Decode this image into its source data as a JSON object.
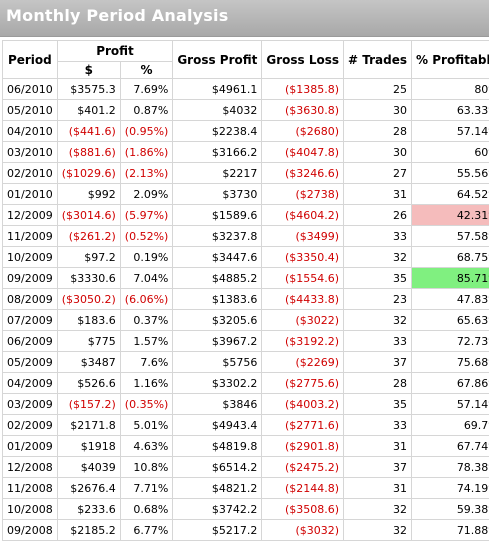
{
  "title": "Monthly Period Analysis",
  "colors": {
    "positive_highlight": "#80f080",
    "negative_highlight": "#f5bcbc",
    "negative_text": "#d00000"
  },
  "columns": {
    "period": "Period",
    "profit": "Profit",
    "profit_dollar": "$",
    "profit_percent": "%",
    "gross_profit": "Gross Profit",
    "gross_loss": "Gross Loss",
    "trades": "# Trades",
    "pct_profitable": "% Profitable"
  },
  "rows": [
    {
      "period": "06/2010",
      "profit_dollar": "$3575.3",
      "profit_percent": "7.69%",
      "gross_profit": "$4961.1",
      "gross_loss": "($1385.8)",
      "trades": "25",
      "pct_profitable": "80%",
      "neg": false,
      "highlight": ""
    },
    {
      "period": "05/2010",
      "profit_dollar": "$401.2",
      "profit_percent": "0.87%",
      "gross_profit": "$4032",
      "gross_loss": "($3630.8)",
      "trades": "30",
      "pct_profitable": "63.33%",
      "neg": false,
      "highlight": ""
    },
    {
      "period": "04/2010",
      "profit_dollar": "($441.6)",
      "profit_percent": "(0.95%)",
      "gross_profit": "$2238.4",
      "gross_loss": "($2680)",
      "trades": "28",
      "pct_profitable": "57.14%",
      "neg": true,
      "highlight": ""
    },
    {
      "period": "03/2010",
      "profit_dollar": "($881.6)",
      "profit_percent": "(1.86%)",
      "gross_profit": "$3166.2",
      "gross_loss": "($4047.8)",
      "trades": "30",
      "pct_profitable": "60%",
      "neg": true,
      "highlight": ""
    },
    {
      "period": "02/2010",
      "profit_dollar": "($1029.6)",
      "profit_percent": "(2.13%)",
      "gross_profit": "$2217",
      "gross_loss": "($3246.6)",
      "trades": "27",
      "pct_profitable": "55.56%",
      "neg": true,
      "highlight": ""
    },
    {
      "period": "01/2010",
      "profit_dollar": "$992",
      "profit_percent": "2.09%",
      "gross_profit": "$3730",
      "gross_loss": "($2738)",
      "trades": "31",
      "pct_profitable": "64.52%",
      "neg": false,
      "highlight": ""
    },
    {
      "period": "12/2009",
      "profit_dollar": "($3014.6)",
      "profit_percent": "(5.97%)",
      "gross_profit": "$1589.6",
      "gross_loss": "($4604.2)",
      "trades": "26",
      "pct_profitable": "42.31%",
      "neg": true,
      "highlight": "worst"
    },
    {
      "period": "11/2009",
      "profit_dollar": "($261.2)",
      "profit_percent": "(0.52%)",
      "gross_profit": "$3237.8",
      "gross_loss": "($3499)",
      "trades": "33",
      "pct_profitable": "57.58%",
      "neg": true,
      "highlight": ""
    },
    {
      "period": "10/2009",
      "profit_dollar": "$97.2",
      "profit_percent": "0.19%",
      "gross_profit": "$3447.6",
      "gross_loss": "($3350.4)",
      "trades": "32",
      "pct_profitable": "68.75%",
      "neg": false,
      "highlight": ""
    },
    {
      "period": "09/2009",
      "profit_dollar": "$3330.6",
      "profit_percent": "7.04%",
      "gross_profit": "$4885.2",
      "gross_loss": "($1554.6)",
      "trades": "35",
      "pct_profitable": "85.71%",
      "neg": false,
      "highlight": "best"
    },
    {
      "period": "08/2009",
      "profit_dollar": "($3050.2)",
      "profit_percent": "(6.06%)",
      "gross_profit": "$1383.6",
      "gross_loss": "($4433.8)",
      "trades": "23",
      "pct_profitable": "47.83%",
      "neg": true,
      "highlight": ""
    },
    {
      "period": "07/2009",
      "profit_dollar": "$183.6",
      "profit_percent": "0.37%",
      "gross_profit": "$3205.6",
      "gross_loss": "($3022)",
      "trades": "32",
      "pct_profitable": "65.63%",
      "neg": false,
      "highlight": ""
    },
    {
      "period": "06/2009",
      "profit_dollar": "$775",
      "profit_percent": "1.57%",
      "gross_profit": "$3967.2",
      "gross_loss": "($3192.2)",
      "trades": "33",
      "pct_profitable": "72.73%",
      "neg": false,
      "highlight": ""
    },
    {
      "period": "05/2009",
      "profit_dollar": "$3487",
      "profit_percent": "7.6%",
      "gross_profit": "$5756",
      "gross_loss": "($2269)",
      "trades": "37",
      "pct_profitable": "75.68%",
      "neg": false,
      "highlight": ""
    },
    {
      "period": "04/2009",
      "profit_dollar": "$526.6",
      "profit_percent": "1.16%",
      "gross_profit": "$3302.2",
      "gross_loss": "($2775.6)",
      "trades": "28",
      "pct_profitable": "67.86%",
      "neg": false,
      "highlight": ""
    },
    {
      "period": "03/2009",
      "profit_dollar": "($157.2)",
      "profit_percent": "(0.35%)",
      "gross_profit": "$3846",
      "gross_loss": "($4003.2)",
      "trades": "35",
      "pct_profitable": "57.14%",
      "neg": true,
      "highlight": ""
    },
    {
      "period": "02/2009",
      "profit_dollar": "$2171.8",
      "profit_percent": "5.01%",
      "gross_profit": "$4943.4",
      "gross_loss": "($2771.6)",
      "trades": "33",
      "pct_profitable": "69.7%",
      "neg": false,
      "highlight": ""
    },
    {
      "period": "01/2009",
      "profit_dollar": "$1918",
      "profit_percent": "4.63%",
      "gross_profit": "$4819.8",
      "gross_loss": "($2901.8)",
      "trades": "31",
      "pct_profitable": "67.74%",
      "neg": false,
      "highlight": ""
    },
    {
      "period": "12/2008",
      "profit_dollar": "$4039",
      "profit_percent": "10.8%",
      "gross_profit": "$6514.2",
      "gross_loss": "($2475.2)",
      "trades": "37",
      "pct_profitable": "78.38%",
      "neg": false,
      "highlight": ""
    },
    {
      "period": "11/2008",
      "profit_dollar": "$2676.4",
      "profit_percent": "7.71%",
      "gross_profit": "$4821.2",
      "gross_loss": "($2144.8)",
      "trades": "31",
      "pct_profitable": "74.19%",
      "neg": false,
      "highlight": ""
    },
    {
      "period": "10/2008",
      "profit_dollar": "$233.6",
      "profit_percent": "0.68%",
      "gross_profit": "$3742.2",
      "gross_loss": "($3508.6)",
      "trades": "32",
      "pct_profitable": "59.38%",
      "neg": false,
      "highlight": ""
    },
    {
      "period": "09/2008",
      "profit_dollar": "$2185.2",
      "profit_percent": "6.77%",
      "gross_profit": "$5217.2",
      "gross_loss": "($3032)",
      "trades": "32",
      "pct_profitable": "71.88%",
      "neg": false,
      "highlight": ""
    }
  ]
}
